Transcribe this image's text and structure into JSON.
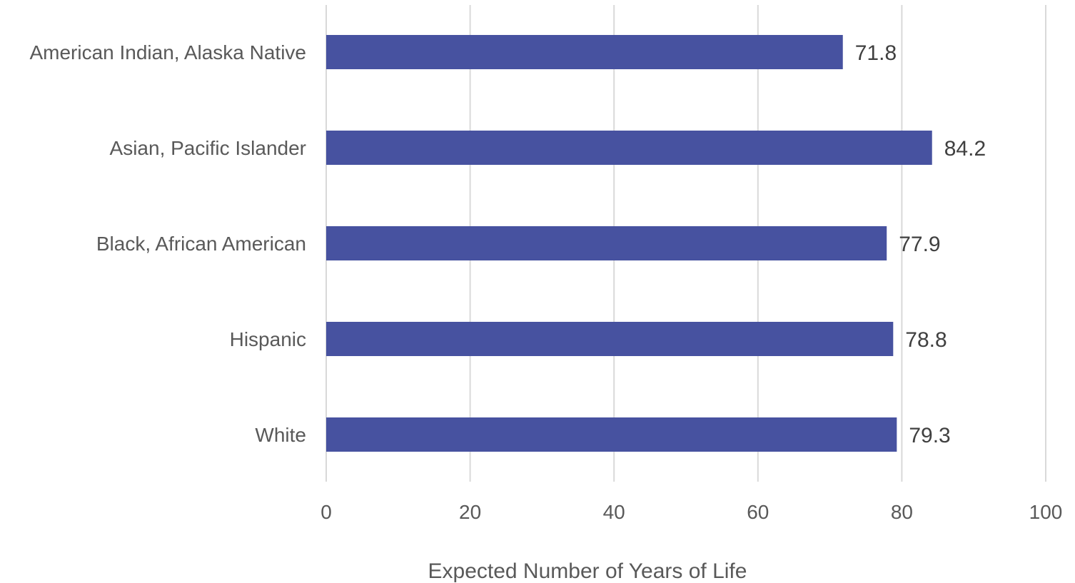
{
  "chart_data": {
    "type": "bar",
    "orientation": "horizontal",
    "categories": [
      "American Indian, Alaska Native",
      "Asian, Pacific Islander",
      "Black, African American",
      "Hispanic",
      "White"
    ],
    "values": [
      71.8,
      84.2,
      77.9,
      78.8,
      79.3
    ],
    "value_labels": [
      "71.8",
      "84.2",
      "77.9",
      "78.8",
      "79.3"
    ],
    "xlabel": "Expected Number of Years of Life",
    "ylabel": "",
    "title": "",
    "xlim": [
      0,
      100
    ],
    "xticks": [
      0,
      20,
      40,
      60,
      80,
      100
    ],
    "xtick_labels": [
      "0",
      "20",
      "40",
      "60",
      "80",
      "100"
    ],
    "grid": "vertical",
    "legend": "none"
  },
  "colors": {
    "bar": "#4752a0",
    "grid": "#d9d9d9"
  }
}
